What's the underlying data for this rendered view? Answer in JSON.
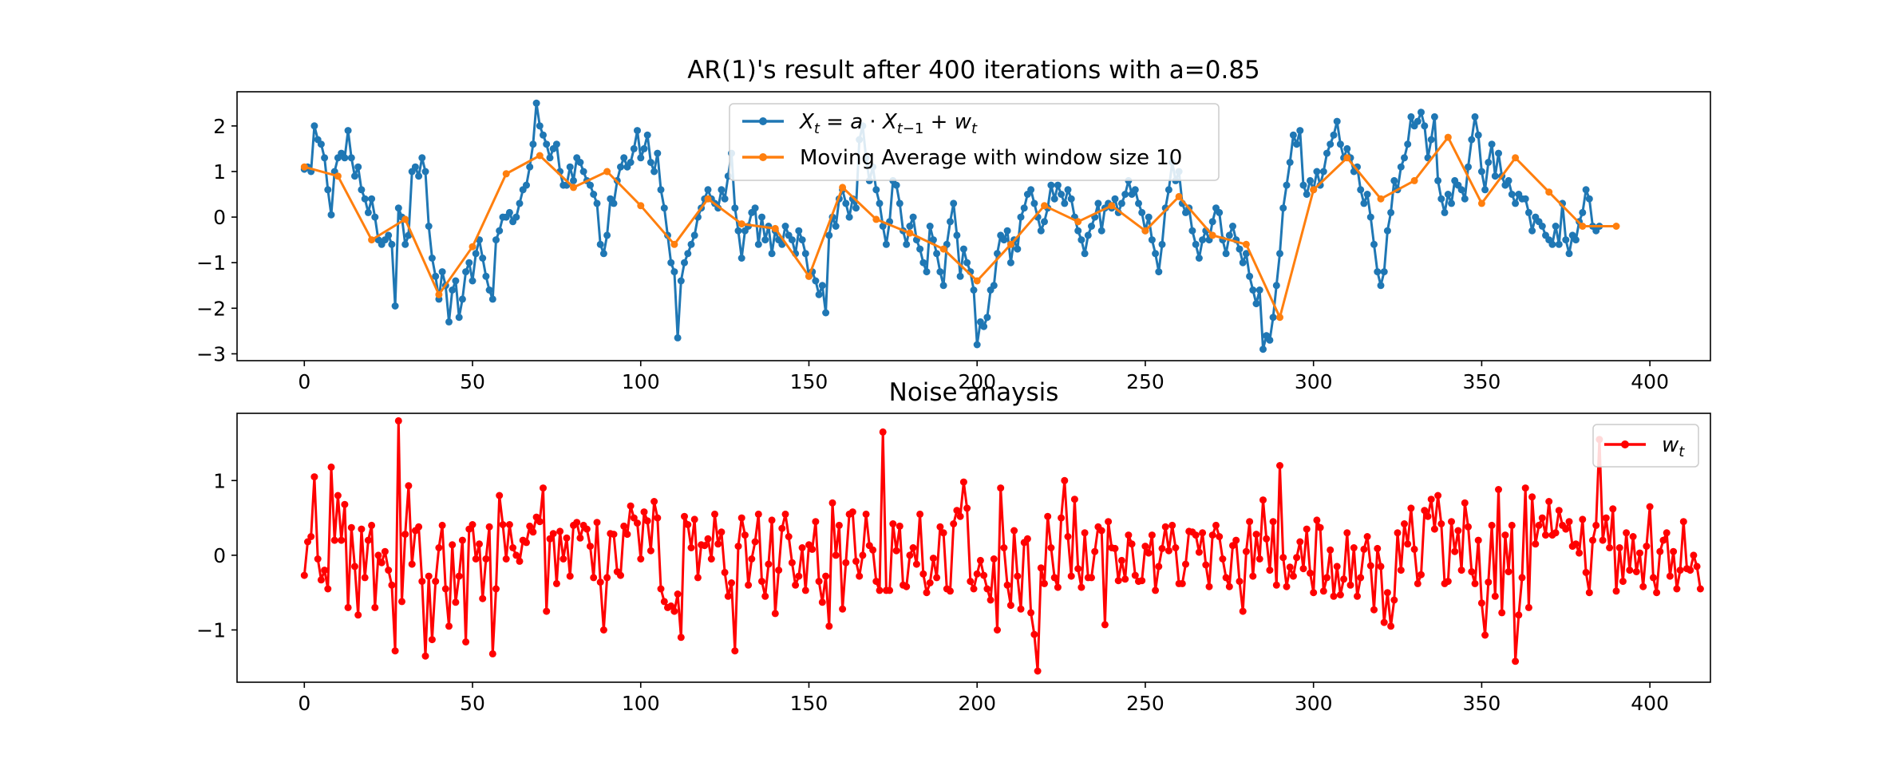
{
  "chart_data": [
    {
      "type": "line",
      "title": "AR(1)'s result after 400 iterations with a=0.85",
      "xlabel": "",
      "ylabel": "",
      "xlim": [
        -20,
        418
      ],
      "ylim": [
        -3.15,
        2.75
      ],
      "xticks": [
        0,
        50,
        100,
        150,
        200,
        250,
        300,
        350,
        400
      ],
      "yticks": [
        -3,
        -2,
        -1,
        0,
        1,
        2
      ],
      "grid": false,
      "legend_position": "top-center",
      "series": [
        {
          "name": "X_t = a · X_{t−1} + w_t",
          "color": "#1f77b4",
          "x_start": 0,
          "x_step": 1,
          "values": [
            1.05,
            1.1,
            1.0,
            2.0,
            1.7,
            1.6,
            1.3,
            0.6,
            0.05,
            1.0,
            1.3,
            1.4,
            1.3,
            1.9,
            1.3,
            0.9,
            1.1,
            0.6,
            0.4,
            0.1,
            0.4,
            0.0,
            -0.5,
            -0.6,
            -0.5,
            -0.4,
            -0.6,
            -1.95,
            0.2,
            0.0,
            -0.6,
            -0.4,
            1.0,
            1.1,
            0.9,
            1.3,
            1.0,
            -0.2,
            -0.9,
            -1.3,
            -1.8,
            -1.2,
            -1.5,
            -2.3,
            -1.6,
            -1.4,
            -2.2,
            -1.8,
            -1.2,
            -1.0,
            -1.4,
            -0.8,
            -0.5,
            -0.9,
            -1.3,
            -1.6,
            -1.8,
            -0.5,
            -0.3,
            0.0,
            0.0,
            0.1,
            -0.1,
            0.0,
            0.3,
            0.6,
            0.7,
            1.1,
            1.6,
            2.5,
            2.0,
            1.8,
            1.6,
            1.3,
            1.5,
            1.6,
            1.0,
            0.7,
            0.7,
            1.1,
            0.8,
            1.3,
            1.2,
            1.0,
            0.8,
            0.7,
            0.5,
            0.3,
            -0.6,
            -0.8,
            -0.4,
            0.4,
            0.3,
            0.8,
            1.1,
            1.3,
            1.1,
            1.2,
            1.5,
            1.9,
            1.3,
            1.5,
            1.8,
            1.2,
            1.0,
            1.4,
            0.6,
            0.2,
            -0.4,
            -1.0,
            -1.2,
            -2.65,
            -1.4,
            -1.0,
            -0.8,
            -0.6,
            -0.4,
            0.0,
            0.2,
            0.4,
            0.6,
            0.4,
            0.3,
            0.2,
            0.6,
            0.4,
            0.9,
            1.4,
            0.2,
            -0.3,
            -0.9,
            -0.3,
            -0.2,
            0.1,
            0.2,
            -0.6,
            0.0,
            -0.5,
            -0.2,
            -0.8,
            -0.3,
            -0.5,
            -0.6,
            -0.2,
            -0.4,
            -0.5,
            -0.8,
            -0.3,
            -0.5,
            -0.8,
            -1.3,
            -1.2,
            -1.4,
            -1.7,
            -1.5,
            -2.1,
            -0.4,
            0.0,
            -0.2,
            0.4,
            0.6,
            0.3,
            0.0,
            0.4,
            0.2,
            1.7,
            2.0,
            1.3,
            0.8,
            1.1,
            0.6,
            0.3,
            -0.2,
            -0.6,
            -0.1,
            0.8,
            0.7,
            0.3,
            -0.3,
            -0.6,
            -0.2,
            0.0,
            -0.5,
            -0.7,
            -1.0,
            -1.2,
            -0.2,
            -0.5,
            -0.8,
            -1.2,
            -1.5,
            -0.6,
            -0.1,
            0.3,
            -0.4,
            -1.3,
            -0.7,
            -1.0,
            -1.2,
            -1.6,
            -2.8,
            -2.3,
            -2.4,
            -2.2,
            -1.6,
            -1.5,
            -0.8,
            -0.4,
            -0.5,
            -0.3,
            -1.0,
            -0.5,
            -0.7,
            0.0,
            0.2,
            0.5,
            0.6,
            0.3,
            0.0,
            -0.3,
            -0.1,
            0.2,
            0.7,
            0.4,
            0.7,
            0.5,
            0.3,
            0.6,
            0.4,
            0.0,
            -0.3,
            -0.5,
            -0.8,
            -0.4,
            -0.2,
            0.0,
            0.3,
            -0.3,
            0.2,
            0.3,
            0.2,
            0.4,
            0.1,
            0.3,
            0.5,
            0.8,
            0.5,
            0.6,
            0.3,
            0.1,
            -0.3,
            0.0,
            -0.5,
            -0.8,
            -1.2,
            -0.6,
            0.2,
            0.6,
            1.2,
            0.8,
            1.0,
            0.3,
            0.1,
            0.2,
            -0.3,
            -0.6,
            -0.9,
            -0.5,
            -0.3,
            -0.5,
            -0.1,
            0.2,
            0.1,
            -0.5,
            -0.8,
            -0.4,
            -0.2,
            -0.5,
            -0.7,
            -1.0,
            -0.8,
            -1.3,
            -1.6,
            -1.9,
            -1.6,
            -2.9,
            -2.6,
            -2.7,
            -2.2,
            -1.5,
            -0.8,
            0.2,
            0.7,
            1.2,
            1.8,
            1.6,
            1.9,
            0.7,
            0.5,
            0.8,
            0.6,
            1.0,
            0.7,
            1.0,
            1.4,
            1.6,
            1.8,
            2.1,
            1.6,
            1.3,
            1.5,
            1.3,
            1.0,
            1.1,
            0.6,
            0.3,
            0.5,
            0.0,
            -0.6,
            -1.2,
            -1.5,
            -1.2,
            -0.3,
            0.1,
            0.8,
            0.6,
            1.1,
            1.3,
            1.6,
            2.2,
            2.0,
            2.1,
            2.3,
            2.0,
            1.3,
            1.7,
            2.2,
            0.8,
            0.4,
            0.1,
            0.5,
            0.3,
            0.8,
            0.7,
            0.6,
            0.4,
            1.1,
            1.7,
            2.2,
            1.8,
            1.0,
            0.6,
            1.2,
            1.6,
            0.9,
            1.4,
            0.9,
            0.7,
            0.8,
            0.5,
            0.3,
            0.5,
            0.4,
            0.4,
            0.1,
            -0.3,
            0.0,
            -0.1,
            -0.2,
            -0.4,
            -0.5,
            -0.6,
            -0.2,
            -0.6,
            0.3,
            -0.5,
            -0.8,
            -0.4,
            -0.5,
            -0.1,
            0.1,
            0.6,
            0.4,
            -0.2,
            -0.3,
            -0.2
          ]
        },
        {
          "name": "Moving Average with window size 10",
          "color": "#ff7f0e",
          "x": [
            0,
            10,
            20,
            30,
            40,
            50,
            60,
            70,
            80,
            90,
            100,
            110,
            120,
            130,
            140,
            150,
            160,
            170,
            180,
            190,
            200,
            210,
            220,
            230,
            240,
            250,
            260,
            270,
            280,
            290,
            300,
            310,
            320,
            330,
            340,
            350,
            360,
            370,
            380,
            390
          ],
          "values": [
            1.1,
            0.9,
            -0.5,
            -0.05,
            -1.7,
            -0.65,
            0.95,
            1.35,
            0.65,
            1.0,
            0.25,
            -0.6,
            0.4,
            -0.15,
            -0.25,
            -1.3,
            0.65,
            -0.05,
            -0.35,
            -0.7,
            -1.4,
            -0.6,
            0.25,
            -0.1,
            0.25,
            -0.3,
            0.45,
            -0.4,
            -0.6,
            -2.2,
            0.6,
            1.3,
            0.4,
            0.8,
            1.75,
            0.3,
            1.3,
            0.55,
            -0.2,
            -0.2
          ]
        }
      ]
    },
    {
      "type": "line",
      "title": "Noise anaysis",
      "xlabel": "",
      "ylabel": "",
      "xlim": [
        -20,
        418
      ],
      "ylim": [
        -1.7,
        1.9
      ],
      "xticks": [
        0,
        50,
        100,
        150,
        200,
        250,
        300,
        350,
        400
      ],
      "yticks": [
        -1,
        0,
        1
      ],
      "grid": false,
      "legend_position": "top-right",
      "series": [
        {
          "name": "w_t",
          "color": "#ff0000",
          "x_start": 0,
          "x_step": 1,
          "values": [
            -0.27,
            0.18,
            0.25,
            1.05,
            -0.05,
            -0.33,
            -0.2,
            -0.45,
            1.18,
            0.2,
            0.8,
            0.2,
            0.68,
            -0.7,
            0.37,
            -0.15,
            -0.8,
            0.35,
            -0.3,
            0.2,
            0.4,
            -0.7,
            0.0,
            -0.1,
            0.05,
            -0.2,
            -0.4,
            -1.28,
            1.8,
            -0.62,
            0.28,
            0.93,
            -0.12,
            0.33,
            0.38,
            -0.35,
            -1.35,
            -0.28,
            -1.13,
            -0.35,
            0.1,
            0.4,
            -0.45,
            -0.95,
            0.14,
            -0.63,
            -0.28,
            0.2,
            -1.16,
            0.35,
            0.41,
            -0.05,
            0.15,
            -0.58,
            -0.05,
            0.38,
            -1.32,
            -0.45,
            0.8,
            0.41,
            -0.05,
            0.41,
            0.1,
            0.0,
            -0.08,
            0.2,
            0.17,
            0.39,
            0.31,
            0.51,
            0.45,
            0.9,
            -0.75,
            0.22,
            0.29,
            -0.38,
            0.32,
            -0.05,
            0.23,
            -0.28,
            0.4,
            0.44,
            0.23,
            0.4,
            0.35,
            0.12,
            -0.3,
            0.44,
            -0.36,
            -1.0,
            -0.3,
            0.29,
            0.28,
            -0.22,
            -0.27,
            0.39,
            0.28,
            0.66,
            0.5,
            0.43,
            -0.05,
            0.58,
            0.46,
            0.06,
            0.72,
            0.5,
            -0.45,
            -0.62,
            -0.7,
            -0.68,
            -0.75,
            -0.52,
            -1.1,
            0.52,
            0.41,
            0.1,
            0.48,
            -0.3,
            0.14,
            0.13,
            0.22,
            -0.05,
            0.55,
            0.15,
            0.31,
            -0.23,
            -0.55,
            -0.37,
            -1.28,
            0.12,
            0.5,
            0.27,
            -0.4,
            -0.05,
            0.18,
            0.55,
            -0.35,
            -0.55,
            -0.12,
            0.47,
            -0.78,
            -0.2,
            0.36,
            0.55,
            0.25,
            -0.1,
            -0.4,
            -0.28,
            0.1,
            -0.47,
            0.14,
            0.08,
            0.45,
            -0.35,
            -0.63,
            -0.28,
            -0.95,
            0.7,
            0.0,
            0.4,
            -0.72,
            -0.1,
            0.55,
            0.58,
            -0.08,
            -0.28,
            0.0,
            0.55,
            0.13,
            0.07,
            -0.35,
            -0.47,
            1.65,
            -0.47,
            -0.47,
            0.42,
            0.06,
            0.39,
            -0.4,
            -0.42,
            0.0,
            0.1,
            -0.12,
            0.55,
            -0.25,
            -0.5,
            -0.37,
            -0.04,
            -0.3,
            0.38,
            0.3,
            -0.45,
            -0.48,
            0.42,
            0.6,
            0.52,
            0.98,
            0.63,
            -0.35,
            -0.45,
            -0.25,
            -0.07,
            -0.27,
            -0.45,
            -0.6,
            -0.05,
            -1.0,
            0.9,
            0.1,
            -0.4,
            -0.67,
            0.33,
            -0.28,
            -0.72,
            0.17,
            0.22,
            -0.77,
            -1.06,
            -1.55,
            -0.17,
            -0.38,
            0.52,
            0.1,
            -0.3,
            -0.43,
            0.5,
            1.0,
            0.25,
            -0.28,
            0.75,
            -0.18,
            -0.43,
            0.3,
            -0.3,
            -0.3,
            0.05,
            0.38,
            0.33,
            -0.93,
            0.45,
            0.1,
            0.09,
            -0.34,
            -0.07,
            -0.32,
            0.27,
            0.15,
            -0.27,
            -0.35,
            -0.34,
            0.12,
            0.03,
            0.27,
            -0.47,
            -0.15,
            0.09,
            0.38,
            0.06,
            0.4,
            0.1,
            -0.38,
            -0.38,
            -0.12,
            0.32,
            0.31,
            0.27,
            0.04,
            0.3,
            -0.13,
            -0.42,
            0.27,
            0.4,
            0.25,
            -0.05,
            -0.3,
            -0.42,
            0.13,
            0.2,
            -0.35,
            -0.75,
            0.05,
            0.45,
            -0.28,
            0.28,
            -0.05,
            0.74,
            0.22,
            -0.2,
            0.45,
            -0.4,
            1.2,
            -0.03,
            -0.42,
            -0.16,
            -0.28,
            -0.03,
            0.18,
            -0.18,
            0.35,
            -0.24,
            -0.5,
            0.47,
            0.37,
            -0.48,
            -0.3,
            0.07,
            -0.55,
            -0.15,
            -0.53,
            -0.32,
            0.3,
            -0.4,
            0.1,
            -0.55,
            -0.3,
            0.08,
            0.25,
            -0.14,
            -0.73,
            0.09,
            -0.15,
            -0.9,
            -0.5,
            -0.95,
            -0.6,
            0.3,
            -0.2,
            0.42,
            0.15,
            0.63,
            0.08,
            -0.38,
            -0.26,
            0.6,
            0.52,
            0.75,
            0.35,
            0.8,
            0.42,
            -0.38,
            -0.35,
            0.45,
            0.05,
            0.33,
            -0.2,
            0.7,
            0.38,
            -0.22,
            -0.38,
            0.2,
            -0.64,
            -1.07,
            -0.36,
            0.4,
            -0.55,
            0.88,
            -0.77,
            0.27,
            -0.22,
            0.4,
            -1.42,
            -0.8,
            -0.3,
            0.9,
            -0.7,
            0.78,
            0.15,
            0.4,
            0.5,
            0.27,
            0.72,
            0.27,
            0.3,
            0.6,
            0.4,
            0.35,
            0.45,
            0.12,
            0.15,
            0.03,
            0.48,
            -0.23,
            -0.5,
            0.2,
            0.4,
            1.55,
            0.2,
            0.5,
            0.1,
            0.62,
            -0.48,
            0.1,
            -0.35,
            0.3,
            -0.2,
            0.25,
            -0.22,
            0.03,
            -0.42,
            0.12,
            0.65,
            -0.3,
            -0.5,
            0.05,
            0.2,
            0.3,
            -0.28,
            0.05,
            -0.45,
            -0.2,
            0.45,
            -0.18,
            -0.2,
            0.0,
            -0.15,
            -0.45
          ]
        }
      ]
    }
  ]
}
